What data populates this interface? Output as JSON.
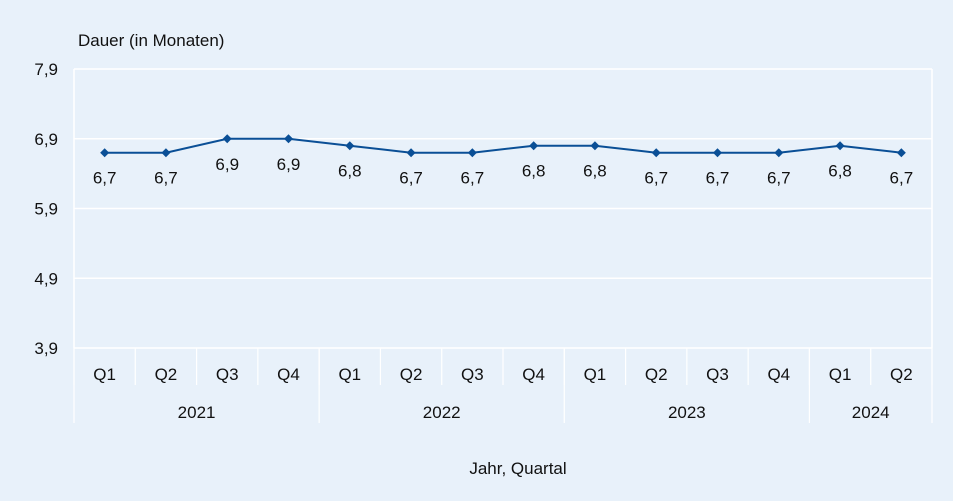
{
  "chart_data": {
    "type": "line",
    "ylabel": "Dauer (in Monaten)",
    "xlabel": "Jahr, Quartal",
    "ylim": [
      3.9,
      7.9
    ],
    "yticks": [
      3.9,
      4.9,
      5.9,
      6.9,
      7.9
    ],
    "ytick_labels": [
      "3,9",
      "4,9",
      "5,9",
      "6,9",
      "7,9"
    ],
    "categories": [
      "Q1",
      "Q2",
      "Q3",
      "Q4",
      "Q1",
      "Q2",
      "Q3",
      "Q4",
      "Q1",
      "Q2",
      "Q3",
      "Q4",
      "Q1",
      "Q2"
    ],
    "groups": [
      {
        "label": "2021",
        "count": 4
      },
      {
        "label": "2022",
        "count": 4
      },
      {
        "label": "2023",
        "count": 4
      },
      {
        "label": "2024",
        "count": 2
      }
    ],
    "series": [
      {
        "values": [
          6.7,
          6.7,
          6.9,
          6.9,
          6.8,
          6.7,
          6.7,
          6.8,
          6.8,
          6.7,
          6.7,
          6.7,
          6.8,
          6.7
        ],
        "labels": [
          "6,7",
          "6,7",
          "6,9",
          "6,9",
          "6,8",
          "6,7",
          "6,7",
          "6,8",
          "6,8",
          "6,7",
          "6,7",
          "6,7",
          "6,8",
          "6,7"
        ],
        "color": "#0a4f96"
      }
    ],
    "grid": true,
    "colors": {
      "background": "#e8f1fa",
      "gridline": "#ffffff",
      "line": "#0a4f96"
    }
  }
}
